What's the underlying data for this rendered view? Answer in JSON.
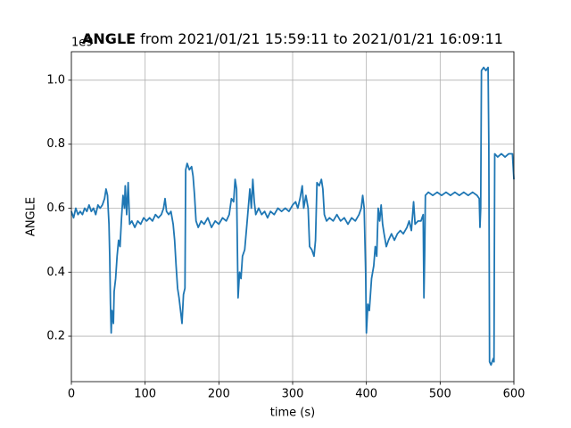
{
  "chart_data": {
    "type": "line",
    "title_bold": "ANGLE",
    "title": "from 2021/01/21 15:59:11 to 2021/01/21 16:09:11",
    "x_label": "time (s)",
    "y_label": "ANGLE",
    "y_offset_label": "1e9",
    "xlim": [
      0,
      600
    ],
    "ylim": [
      0.058,
      1.089
    ],
    "xticks": [
      0,
      100,
      200,
      300,
      400,
      500,
      600
    ],
    "yticks": [
      0.2,
      0.4,
      0.6,
      0.8,
      {
        "value": 1,
        "label": "1.0"
      }
    ],
    "grid": true,
    "series": [
      {
        "color": "#1f77b4",
        "x": [
          0,
          3,
          6,
          9,
          12,
          15,
          18,
          21,
          24,
          27,
          30,
          33,
          36,
          39,
          42,
          45,
          47,
          49,
          51,
          52,
          53,
          54,
          55,
          57,
          58,
          60,
          62,
          64,
          66,
          68,
          70,
          72,
          73,
          75,
          77,
          79,
          82,
          86,
          90,
          94,
          98,
          102,
          106,
          110,
          114,
          118,
          122,
          125,
          127,
          129,
          132,
          135,
          138,
          140,
          142,
          144,
          146,
          148,
          150,
          152,
          154,
          155,
          157,
          160,
          163,
          165,
          167,
          169,
          172,
          176,
          180,
          185,
          190,
          195,
          200,
          205,
          210,
          214,
          217,
          220,
          222,
          224,
          226,
          228,
          230,
          232,
          235,
          238,
          242,
          244,
          246,
          248,
          250,
          254,
          258,
          262,
          266,
          270,
          275,
          280,
          285,
          290,
          295,
          300,
          304,
          307,
          310,
          313,
          315,
          318,
          321,
          323,
          326,
          329,
          331,
          333,
          336,
          339,
          341,
          343,
          346,
          350,
          355,
          360,
          365,
          370,
          375,
          380,
          385,
          390,
          393,
          395,
          397,
          399,
          400,
          402,
          404,
          407,
          410,
          412,
          414,
          416,
          418,
          420,
          422,
          424,
          427,
          430,
          434,
          438,
          442,
          446,
          450,
          455,
          458,
          461,
          464,
          466,
          470,
          474,
          477,
          478,
          479,
          480,
          484,
          490,
          496,
          502,
          508,
          514,
          520,
          526,
          532,
          538,
          544,
          550,
          553,
          554,
          555,
          556,
          559,
          562,
          565,
          566,
          567,
          569,
          572,
          573,
          574,
          578,
          583,
          588,
          593,
          598,
          600
        ],
        "values": [
          0.59,
          0.57,
          0.6,
          0.58,
          0.59,
          0.58,
          0.6,
          0.59,
          0.61,
          0.59,
          0.6,
          0.58,
          0.61,
          0.6,
          0.61,
          0.63,
          0.66,
          0.64,
          0.55,
          0.45,
          0.3,
          0.21,
          0.28,
          0.24,
          0.34,
          0.38,
          0.45,
          0.5,
          0.48,
          0.57,
          0.64,
          0.6,
          0.67,
          0.58,
          0.68,
          0.55,
          0.56,
          0.54,
          0.56,
          0.55,
          0.57,
          0.56,
          0.57,
          0.56,
          0.58,
          0.57,
          0.58,
          0.6,
          0.63,
          0.59,
          0.58,
          0.59,
          0.55,
          0.5,
          0.42,
          0.35,
          0.32,
          0.28,
          0.24,
          0.33,
          0.35,
          0.72,
          0.74,
          0.72,
          0.73,
          0.7,
          0.64,
          0.56,
          0.54,
          0.56,
          0.55,
          0.57,
          0.54,
          0.56,
          0.55,
          0.57,
          0.56,
          0.58,
          0.63,
          0.62,
          0.69,
          0.66,
          0.32,
          0.4,
          0.38,
          0.45,
          0.47,
          0.55,
          0.66,
          0.6,
          0.69,
          0.62,
          0.58,
          0.6,
          0.58,
          0.59,
          0.57,
          0.59,
          0.58,
          0.6,
          0.59,
          0.6,
          0.59,
          0.61,
          0.62,
          0.6,
          0.63,
          0.67,
          0.6,
          0.64,
          0.6,
          0.48,
          0.47,
          0.45,
          0.5,
          0.68,
          0.67,
          0.69,
          0.66,
          0.58,
          0.56,
          0.57,
          0.56,
          0.58,
          0.56,
          0.57,
          0.55,
          0.57,
          0.56,
          0.58,
          0.6,
          0.64,
          0.6,
          0.4,
          0.21,
          0.3,
          0.28,
          0.38,
          0.42,
          0.48,
          0.45,
          0.6,
          0.56,
          0.61,
          0.55,
          0.52,
          0.48,
          0.5,
          0.52,
          0.5,
          0.52,
          0.53,
          0.52,
          0.54,
          0.56,
          0.53,
          0.62,
          0.55,
          0.56,
          0.56,
          0.58,
          0.32,
          0.45,
          0.64,
          0.65,
          0.64,
          0.65,
          0.64,
          0.65,
          0.64,
          0.65,
          0.64,
          0.65,
          0.64,
          0.65,
          0.64,
          0.63,
          0.54,
          0.6,
          1.03,
          1.04,
          1.03,
          1.04,
          0.8,
          0.12,
          0.11,
          0.13,
          0.12,
          0.77,
          0.76,
          0.77,
          0.76,
          0.77,
          0.77,
          0.69
        ]
      }
    ]
  }
}
